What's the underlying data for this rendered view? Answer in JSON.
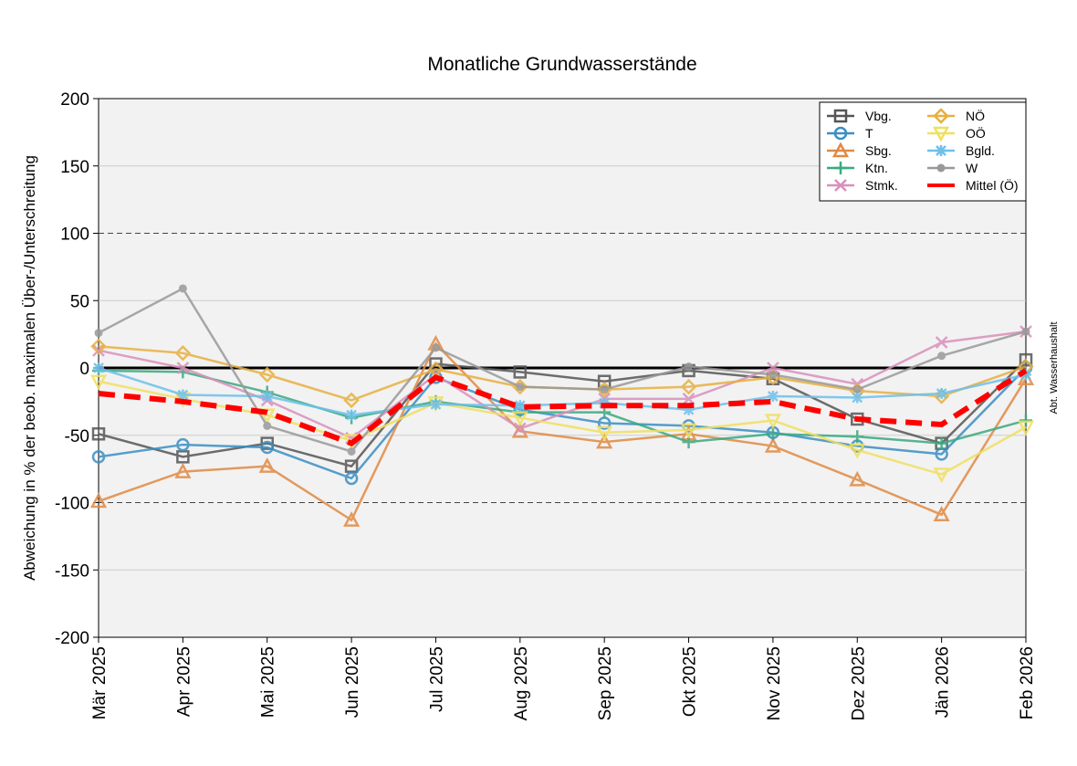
{
  "chart_data": {
    "type": "line",
    "title": "Monatliche Grundwasserstände",
    "ylabel": "Abweichung in % der beob. maximalen Über-/Unterschreitung",
    "xlabel": "",
    "side_note": "Abt. Wasserhaushalt",
    "ylim": [
      -200,
      200
    ],
    "yticks": [
      -200,
      -150,
      -100,
      -50,
      0,
      50,
      100,
      150,
      200
    ],
    "reference_lines": {
      "dashed": [
        100,
        -100
      ],
      "bold": [
        0
      ]
    },
    "grid": true,
    "legend_position": "top-right",
    "categories": [
      "Mär 2025",
      "Apr 2025",
      "Mai 2025",
      "Jun 2025",
      "Jul 2025",
      "Aug 2025",
      "Sep 2025",
      "Okt 2025",
      "Nov 2025",
      "Dez 2025",
      "Jän 2026",
      "Feb 2026"
    ],
    "series": [
      {
        "name": "Vbg.",
        "color": "#555555",
        "marker": "square",
        "values": [
          -49,
          -66,
          -56,
          -73,
          3,
          -3,
          -10,
          -2,
          -8,
          -38,
          -56,
          6
        ]
      },
      {
        "name": "T",
        "color": "#3a8fc4",
        "marker": "circle",
        "values": [
          -66,
          -57,
          -59,
          -82,
          -7,
          -31,
          -41,
          -43,
          -48,
          -58,
          -64,
          0
        ]
      },
      {
        "name": "Sbg.",
        "color": "#e08a44",
        "marker": "triangle-up",
        "values": [
          -99,
          -77,
          -73,
          -113,
          18,
          -47,
          -55,
          -49,
          -58,
          -83,
          -109,
          -8
        ]
      },
      {
        "name": "Ktn.",
        "color": "#3aaa80",
        "marker": "plus",
        "values": [
          -2,
          -3,
          -18,
          -37,
          -25,
          -33,
          -33,
          -55,
          -49,
          -51,
          -56,
          -39
        ]
      },
      {
        "name": "Stmk.",
        "color": "#d990bb",
        "marker": "x",
        "values": [
          13,
          0,
          -24,
          -52,
          -5,
          -45,
          -23,
          -23,
          0,
          -12,
          19,
          27
        ]
      },
      {
        "name": "NÖ",
        "color": "#e8b040",
        "marker": "diamond",
        "values": [
          16,
          11,
          -5,
          -24,
          -1,
          -14,
          -16,
          -14,
          -7,
          -17,
          -21,
          1
        ]
      },
      {
        "name": "OÖ",
        "color": "#f0e060",
        "marker": "triangle-down",
        "values": [
          -10,
          -23,
          -35,
          -54,
          -26,
          -37,
          -48,
          -46,
          -39,
          -61,
          -79,
          -44
        ]
      },
      {
        "name": "Bgld.",
        "color": "#6ec0ea",
        "marker": "asterisk",
        "values": [
          0,
          -20,
          -21,
          -35,
          -27,
          -28,
          -26,
          -31,
          -21,
          -22,
          -19,
          -5
        ]
      },
      {
        "name": "W",
        "color": "#999999",
        "marker": "dot",
        "values": [
          26,
          59,
          -43,
          -62,
          15,
          -14,
          -16,
          1,
          -5,
          -16,
          9,
          27
        ]
      },
      {
        "name": "Mittel (Ö)",
        "color": "#ff0000",
        "marker": "none",
        "dashed": true,
        "values": [
          -19,
          -25,
          -33,
          -56,
          -7,
          -29,
          -28,
          -28,
          -25,
          -38,
          -42,
          -2
        ]
      }
    ]
  }
}
